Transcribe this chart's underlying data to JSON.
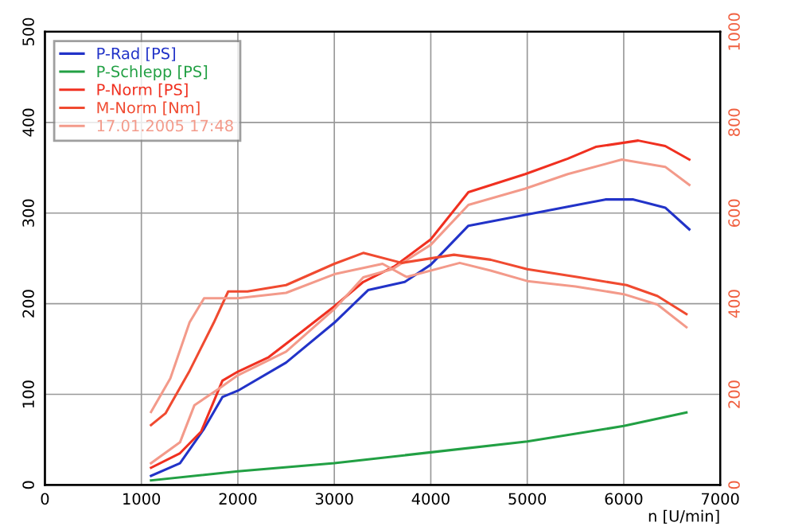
{
  "chart_data": {
    "type": "line",
    "xlabel": "n [U/min]",
    "xlim": [
      0,
      7000
    ],
    "xticks": [
      0,
      1000,
      2000,
      3000,
      4000,
      5000,
      6000,
      7000
    ],
    "ylim": [
      0,
      500
    ],
    "yticks": [
      0,
      100,
      200,
      300,
      400,
      500
    ],
    "y2lim": [
      0,
      1000
    ],
    "y2ticks": [
      0,
      200,
      400,
      600,
      800,
      1000
    ],
    "grid": true,
    "legend": "top left",
    "marker": "none",
    "line_style": "solid",
    "series": [
      {
        "name": "P-Rad [PS]",
        "color": "#2233c8",
        "x": [
          1100,
          1400,
          1650,
          1840,
          2000,
          2500,
          3000,
          3350,
          3730,
          4000,
          4390,
          4980,
          5420,
          5810,
          6100,
          6430,
          6680
        ],
        "values": [
          10,
          24,
          62,
          97,
          104,
          135,
          179,
          215,
          224,
          243,
          286,
          298,
          307,
          315,
          315,
          306,
          282
        ]
      },
      {
        "name": "P-Schlepp [PS]",
        "color": "#22a044",
        "x": [
          1100,
          2000,
          3000,
          4000,
          5000,
          6000,
          6650
        ],
        "values": [
          5,
          15,
          24,
          36,
          48,
          65,
          80
        ]
      },
      {
        "name": "P-Norm [PS]",
        "color": "#f03020",
        "x": [
          1100,
          1400,
          1620,
          1840,
          2000,
          2320,
          2650,
          3000,
          3300,
          3620,
          4000,
          4390,
          4980,
          5420,
          5710,
          6150,
          6430,
          6680
        ],
        "values": [
          19,
          35,
          59,
          115,
          125,
          141,
          168,
          197,
          224,
          241,
          271,
          323,
          343,
          360,
          373,
          380,
          374,
          359
        ]
      },
      {
        "name": "M-Norm [Nm]",
        "color": "#f04a30",
        "axis": "y2",
        "x": [
          1100,
          1250,
          1500,
          1750,
          1900,
          2100,
          2500,
          3000,
          3300,
          3700,
          4240,
          4620,
          5000,
          5540,
          6030,
          6350,
          6650
        ],
        "values": [
          132,
          158,
          252,
          358,
          427,
          427,
          441,
          488,
          512,
          490,
          508,
          497,
          476,
          458,
          441,
          417,
          377
        ]
      },
      {
        "name": "17.01.2005 17:48",
        "color": "#f39a8a",
        "x": [
          1100,
          1400,
          1550,
          1800,
          2000,
          2500,
          3000,
          3300,
          3600,
          4000,
          4390,
          4980,
          5420,
          5980,
          6430,
          6680
        ],
        "values": [
          24,
          47,
          88,
          106,
          121,
          147,
          194,
          229,
          238,
          265,
          309,
          327,
          343,
          359,
          351,
          331
        ]
      },
      {
        "color": "#f39a8a",
        "axis": "y2",
        "x": [
          1100,
          1300,
          1500,
          1650,
          2000,
          2500,
          3000,
          3500,
          3750,
          4300,
          4620,
          5000,
          5500,
          6000,
          6350,
          6650
        ],
        "values": [
          161,
          235,
          359,
          412,
          412,
          424,
          465,
          488,
          459,
          490,
          473,
          450,
          438,
          421,
          398,
          348
        ]
      }
    ]
  }
}
